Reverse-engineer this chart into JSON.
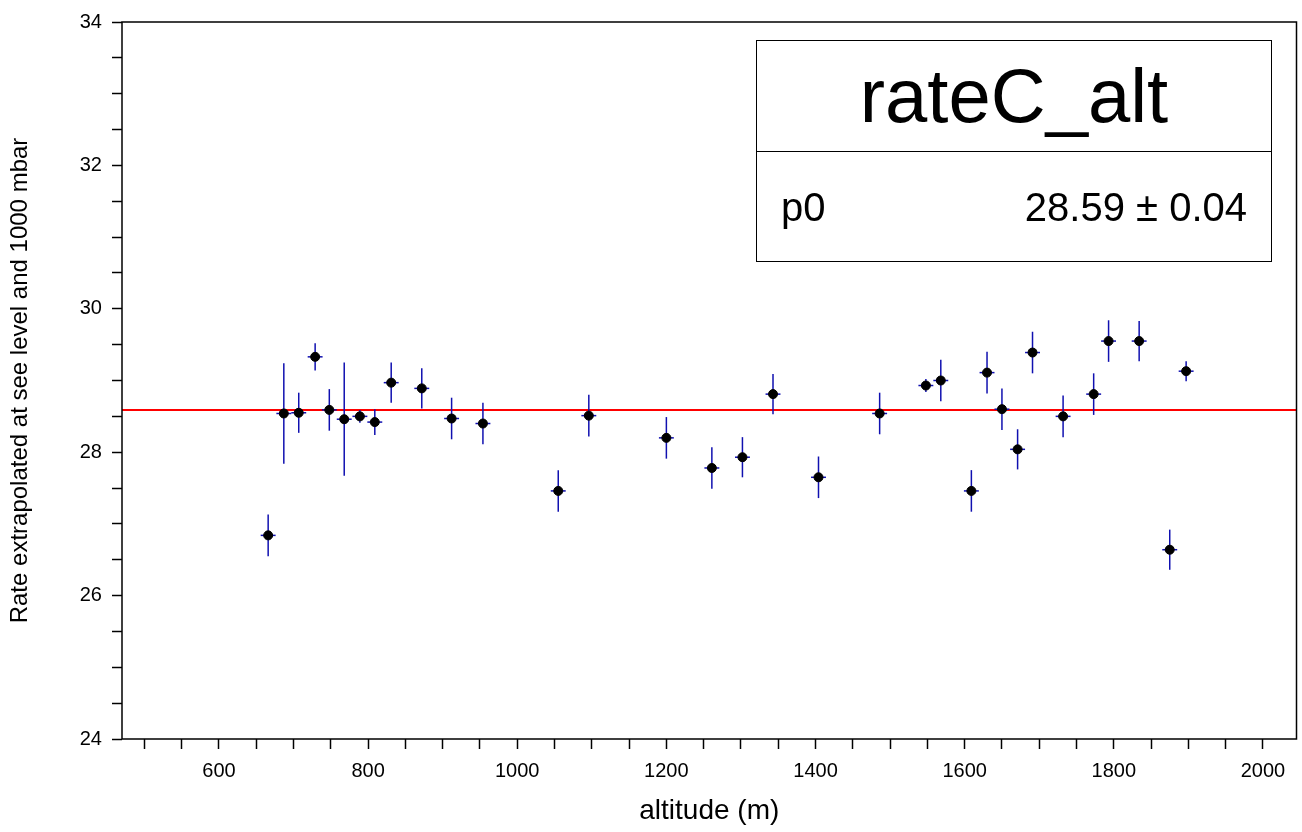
{
  "chart_data": {
    "type": "scatter",
    "title": "rateC_alt",
    "xlabel": "altitude (m)",
    "ylabel": "Rate extrapolated at see level and 1000 mbar",
    "x": [
      666,
      687,
      707,
      729,
      748,
      768,
      789,
      809,
      831,
      872,
      912,
      954,
      1055,
      1096,
      1200,
      1261,
      1302,
      1343,
      1404,
      1486,
      1548,
      1568,
      1609,
      1630,
      1650,
      1671,
      1691,
      1732,
      1773,
      1793,
      1834,
      1875,
      1897
    ],
    "series": [
      {
        "color": "#000000",
        "values": [
          26.84,
          28.54,
          28.55,
          29.33,
          28.59,
          28.46,
          28.5,
          28.42,
          28.97,
          28.89,
          28.47,
          28.4,
          27.46,
          28.51,
          28.2,
          27.78,
          27.93,
          28.81,
          27.65,
          28.54,
          28.93,
          29.0,
          27.46,
          29.11,
          28.6,
          28.04,
          29.39,
          28.5,
          28.81,
          29.55,
          29.55,
          26.64,
          29.13
        ],
        "errors": [
          0.29,
          0.7,
          0.28,
          0.19,
          0.29,
          0.79,
          0.09,
          0.18,
          0.28,
          0.28,
          0.29,
          0.29,
          0.29,
          0.29,
          0.29,
          0.29,
          0.28,
          0.28,
          0.29,
          0.29,
          0.09,
          0.29,
          0.29,
          0.29,
          0.29,
          0.28,
          0.29,
          0.29,
          0.29,
          0.29,
          0.28,
          0.28,
          0.14
        ],
        "xerrors": [
          10,
          10,
          10,
          10,
          10,
          10,
          10,
          10,
          10,
          10,
          10,
          10,
          10,
          10,
          10,
          10,
          10,
          10,
          10,
          10,
          10,
          10,
          10,
          10,
          10,
          10,
          10,
          10,
          10,
          10,
          10,
          10,
          10
        ]
      }
    ],
    "ref_lines": [
      {
        "axis": "y",
        "value": 28.59,
        "label": null,
        "color": "#ff0000"
      }
    ],
    "annotations": [
      "p0",
      "28.59 ± 0.04"
    ],
    "xlim": [
      470,
      2045
    ],
    "ylim": [
      24,
      34
    ],
    "xticks": [
      {
        "value": 500,
        "label": null
      },
      {
        "value": 550,
        "label": null
      },
      600,
      {
        "value": 650,
        "label": null
      },
      {
        "value": 700,
        "label": null
      },
      {
        "value": 750,
        "label": null
      },
      800,
      {
        "value": 850,
        "label": null
      },
      {
        "value": 900,
        "label": null
      },
      {
        "value": 950,
        "label": null
      },
      1000,
      {
        "value": 1050,
        "label": null
      },
      {
        "value": 1100,
        "label": null
      },
      {
        "value": 1150,
        "label": null
      },
      1200,
      {
        "value": 1250,
        "label": null
      },
      {
        "value": 1300,
        "label": null
      },
      {
        "value": 1350,
        "label": null
      },
      1400,
      {
        "value": 1450,
        "label": null
      },
      {
        "value": 1500,
        "label": null
      },
      {
        "value": 1550,
        "label": null
      },
      1600,
      {
        "value": 1650,
        "label": null
      },
      {
        "value": 1700,
        "label": null
      },
      {
        "value": 1750,
        "label": null
      },
      1800,
      {
        "value": 1850,
        "label": null
      },
      {
        "value": 1900,
        "label": null
      },
      {
        "value": 1950,
        "label": null
      },
      2000
    ],
    "yticks": [
      24,
      {
        "value": 24.5,
        "label": null
      },
      {
        "value": 25,
        "label": null
      },
      {
        "value": 25.5,
        "label": null
      },
      26,
      {
        "value": 26.5,
        "label": null
      },
      {
        "value": 27,
        "label": null
      },
      {
        "value": 27.5,
        "label": null
      },
      28,
      {
        "value": 28.5,
        "label": null
      },
      {
        "value": 29,
        "label": null
      },
      {
        "value": 29.5,
        "label": null
      },
      30,
      {
        "value": 30.5,
        "label": null
      },
      {
        "value": 31,
        "label": null
      },
      {
        "value": 31.5,
        "label": null
      },
      32,
      {
        "value": 32.5,
        "label": null
      },
      {
        "value": 33,
        "label": null
      },
      {
        "value": 33.5,
        "label": null
      },
      34
    ],
    "marker": "circle",
    "grid": false,
    "legend": false
  }
}
